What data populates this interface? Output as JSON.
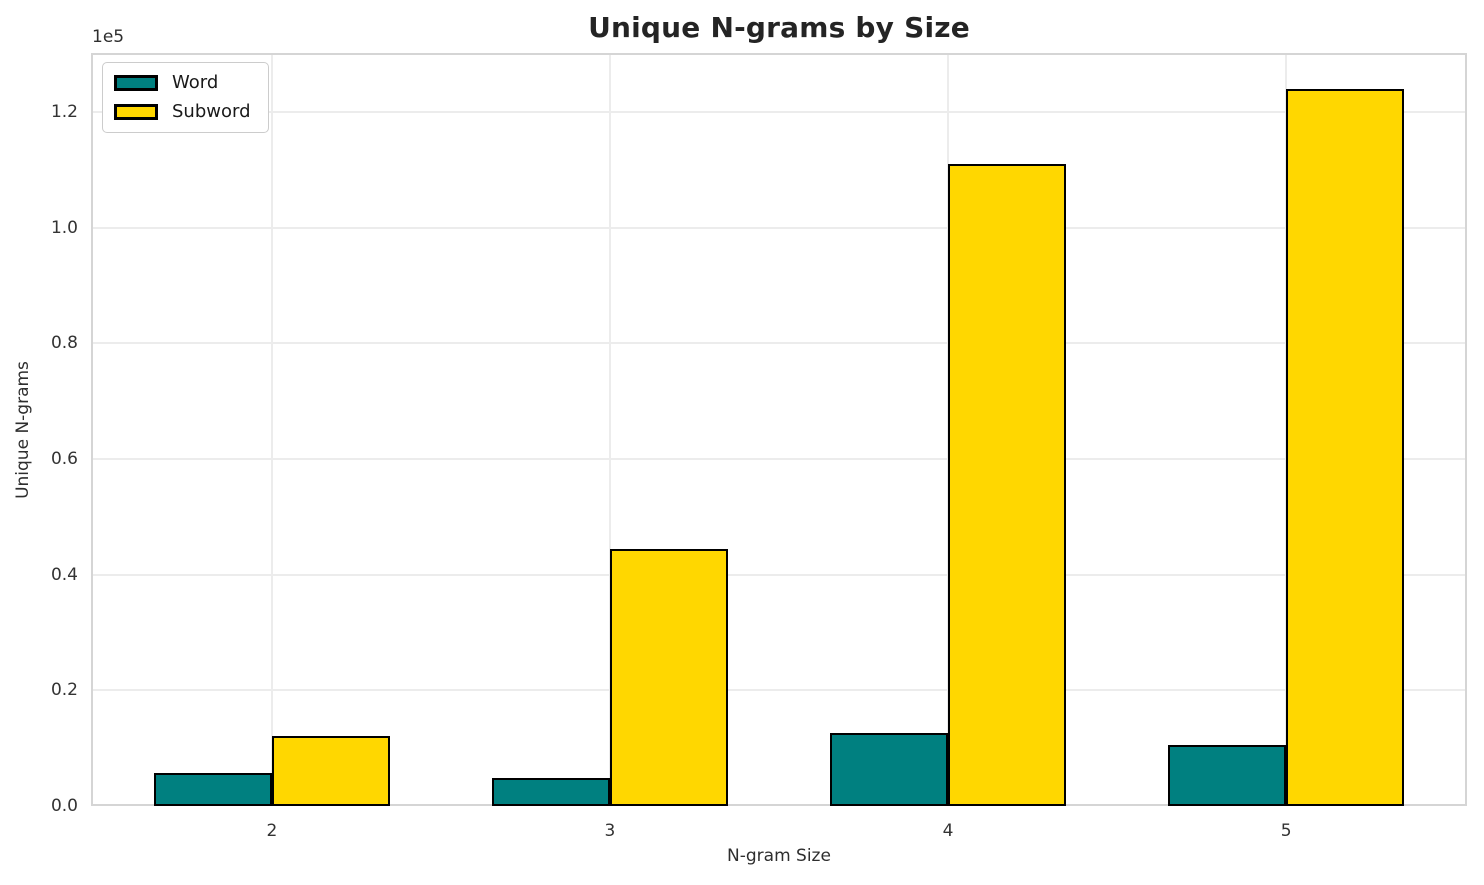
{
  "chart_data": {
    "type": "bar",
    "title": "Unique N-grams by Size",
    "xlabel": "N-gram Size",
    "ylabel": "Unique N-grams",
    "categories": [
      "2",
      "3",
      "4",
      "5"
    ],
    "series": [
      {
        "name": "Word",
        "color": "#008080",
        "values": [
          5700,
          4900,
          12600,
          10500
        ]
      },
      {
        "name": "Subword",
        "color": "#FFD700",
        "values": [
          12100,
          44400,
          111000,
          124000
        ]
      }
    ],
    "bar_edge_color": "#000000",
    "ylim": [
      0,
      130200
    ],
    "yticks": {
      "values": [
        0,
        20000,
        40000,
        60000,
        80000,
        100000,
        120000
      ],
      "labels": [
        "0.0",
        "0.2",
        "0.4",
        "0.6",
        "0.8",
        "1.0",
        "1.2"
      ],
      "offset_label": "1e5"
    },
    "grid": true,
    "legend_position": "upper-left",
    "colors": {
      "grid": "#ececec",
      "spine": "#d5d5d5",
      "background": "#ffffff"
    }
  }
}
